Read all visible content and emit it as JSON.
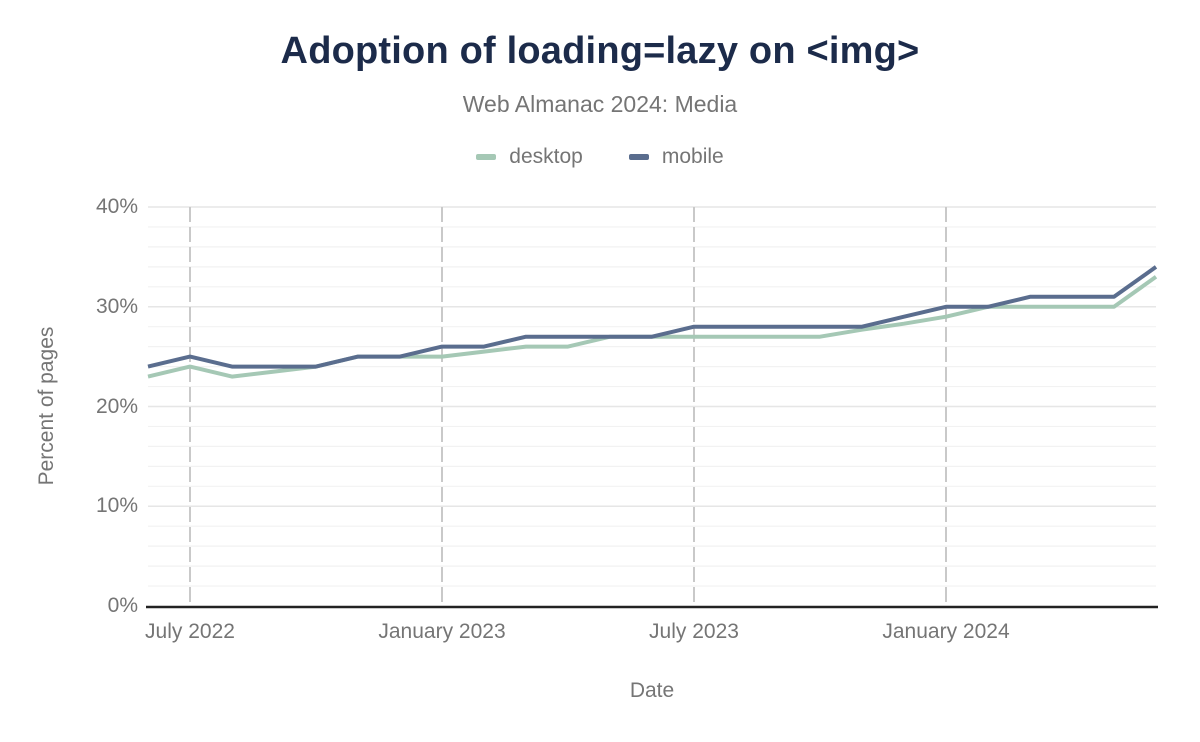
{
  "header": {
    "title": "Adoption of loading=lazy on <img>",
    "subtitle": "Web Almanac 2024: Media"
  },
  "legend": [
    {
      "label": "desktop",
      "color": "#a5c8b5"
    },
    {
      "label": "mobile",
      "color": "#5a6d8e"
    }
  ],
  "axes": {
    "x_title": "Date",
    "y_title": "Percent of pages"
  },
  "colors": {
    "title_text": "#1c2b4a",
    "subtitle_text": "#757575",
    "legend_text": "#757575",
    "axis_text": "#757575",
    "axis_line": "#222222",
    "grid_major": "#e6e6e6",
    "grid_minor": "#f2f2f2",
    "grid_vertical_dashed": "#c9c9c9",
    "desktop_series": "#a5c8b5",
    "mobile_series": "#5a6d8e"
  },
  "chart_data": {
    "type": "line",
    "title": "Adoption of loading=lazy on <img>",
    "subtitle": "Web Almanac 2024: Media",
    "xlabel": "Date",
    "ylabel": "Percent of pages",
    "ylim": [
      0,
      40
    ],
    "grid": "horizontal minor every 2%, horizontal major every 10%, vertical dashed gridlines at labeled dates",
    "legend_position": "top-center",
    "x": [
      "2022-06",
      "2022-07",
      "2022-08",
      "2022-09",
      "2022-10",
      "2022-11",
      "2022-12",
      "2023-01",
      "2023-02",
      "2023-03",
      "2023-04",
      "2023-05",
      "2023-06",
      "2023-07",
      "2023-08",
      "2023-09",
      "2023-10",
      "2023-11",
      "2023-12",
      "2024-01",
      "2024-02",
      "2024-03",
      "2024-04",
      "2024-05",
      "2024-06"
    ],
    "series": [
      {
        "name": "desktop",
        "color": "#a5c8b5",
        "values": [
          23,
          24,
          23,
          23.5,
          24,
          25,
          25,
          25,
          25.5,
          26,
          26,
          27,
          27,
          27,
          27,
          27,
          27,
          27.7,
          28.3,
          29,
          30,
          30,
          30,
          30,
          33
        ]
      },
      {
        "name": "mobile",
        "color": "#5a6d8e",
        "values": [
          24,
          25,
          24,
          24,
          24,
          25,
          25,
          26,
          26,
          27,
          27,
          27,
          27,
          28,
          28,
          28,
          28,
          28,
          29,
          30,
          30,
          31,
          31,
          31,
          34
        ]
      }
    ],
    "y_ticks": [
      {
        "value": 0,
        "label": "0%"
      },
      {
        "value": 10,
        "label": "10%"
      },
      {
        "value": 20,
        "label": "20%"
      },
      {
        "value": 30,
        "label": "30%"
      },
      {
        "value": 40,
        "label": "40%"
      }
    ],
    "x_ticks": [
      {
        "month": "2022-07",
        "label": "July 2022"
      },
      {
        "month": "2023-01",
        "label": "January 2023"
      },
      {
        "month": "2023-07",
        "label": "July 2023"
      },
      {
        "month": "2024-01",
        "label": "January 2024"
      }
    ]
  }
}
